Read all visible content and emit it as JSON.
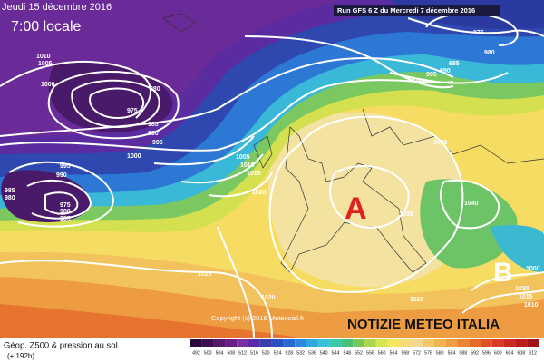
{
  "header": {
    "date": "Jeudi 15 décembre 2016",
    "time": "7:00 locale",
    "run": "Run GFS 6 Z du Mercredi 7 décembre 2016"
  },
  "map": {
    "high": "A",
    "low": "B",
    "isobar_labels": [
      "1010",
      "1005",
      "1000",
      "980",
      "975",
      "985",
      "990",
      "995",
      "1000",
      "995",
      "990",
      "985",
      "980",
      "975",
      "980",
      "985",
      "1005",
      "1010",
      "1015",
      "1020",
      "1000",
      "995",
      "990",
      "985",
      "980",
      "975",
      "1030",
      "1035",
      "1040",
      "1025",
      "1020",
      "1025",
      "1020",
      "1015",
      "1010",
      "1000"
    ],
    "copyright": "Copyright (c) 2016 Meteociel.fr",
    "watermark": "NOTIZIE METEO ITALIA"
  },
  "footer": {
    "title": "Géop. Z500 & pression au sol",
    "range": "(+ 192h)",
    "scale": [
      {
        "label": "492",
        "color": "#2a0a3a"
      },
      {
        "label": "500",
        "color": "#3d1050"
      },
      {
        "label": "504",
        "color": "#561868"
      },
      {
        "label": "508",
        "color": "#6a2088"
      },
      {
        "label": "512",
        "color": "#7a30a0"
      },
      {
        "label": "516",
        "color": "#5a2ca8"
      },
      {
        "label": "520",
        "color": "#3a3cb0"
      },
      {
        "label": "524",
        "color": "#2c50c0"
      },
      {
        "label": "528",
        "color": "#2a6ad0"
      },
      {
        "label": "532",
        "color": "#2c88dc"
      },
      {
        "label": "536",
        "color": "#30a6e0"
      },
      {
        "label": "540",
        "color": "#38c0d8"
      },
      {
        "label": "544",
        "color": "#3cc8a8"
      },
      {
        "label": "548",
        "color": "#48c078"
      },
      {
        "label": "552",
        "color": "#78c858"
      },
      {
        "label": "556",
        "color": "#a8d850"
      },
      {
        "label": "560",
        "color": "#d8e450"
      },
      {
        "label": "564",
        "color": "#f4e860"
      },
      {
        "label": "568",
        "color": "#f6dc78"
      },
      {
        "label": "572",
        "color": "#f4d890"
      },
      {
        "label": "576",
        "color": "#f2c86a"
      },
      {
        "label": "580",
        "color": "#f0b450"
      },
      {
        "label": "584",
        "color": "#ee9e40"
      },
      {
        "label": "588",
        "color": "#ea8434"
      },
      {
        "label": "592",
        "color": "#e66a2c"
      },
      {
        "label": "596",
        "color": "#e05028"
      },
      {
        "label": "600",
        "color": "#d83a24"
      },
      {
        "label": "604",
        "color": "#cc2a20"
      },
      {
        "label": "608",
        "color": "#b81e1c"
      },
      {
        "label": "612",
        "color": "#a01418"
      }
    ]
  }
}
